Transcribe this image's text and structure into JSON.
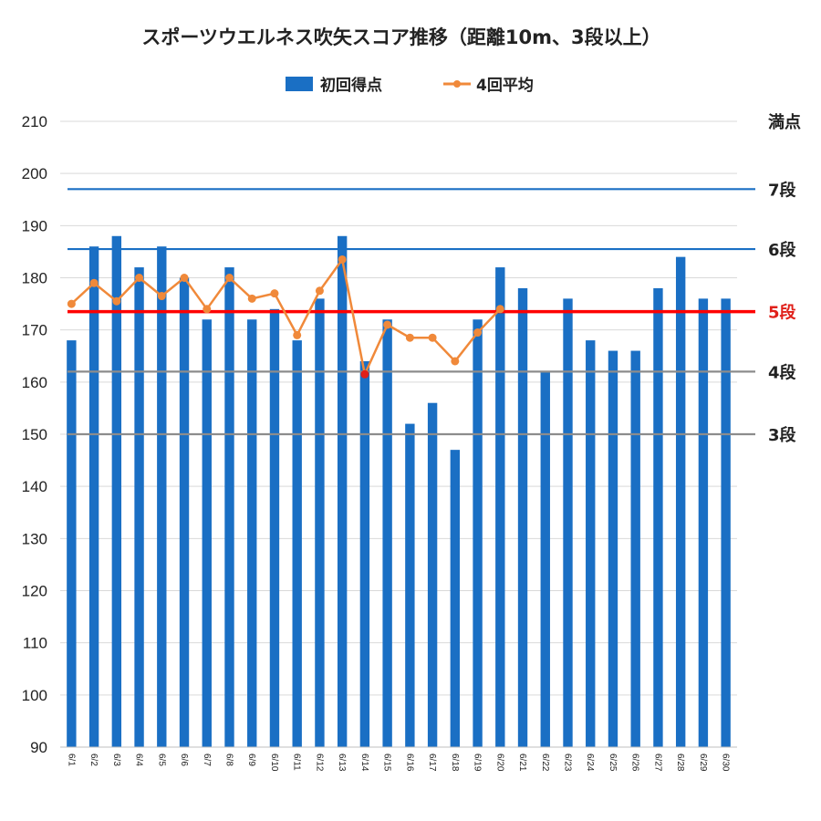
{
  "chart_data": {
    "type": "bar",
    "title": "スポーツウエルネス吹矢スコア推移（距離10m、3段以上）",
    "categories": [
      "6/1",
      "6/2",
      "6/3",
      "6/4",
      "6/5",
      "6/6",
      "6/7",
      "6/8",
      "6/9",
      "6/10",
      "6/11",
      "6/12",
      "6/13",
      "6/14",
      "6/15",
      "6/16",
      "6/17",
      "6/18",
      "6/19",
      "6/20",
      "6/21",
      "6/22",
      "6/23",
      "6/24",
      "6/25",
      "6/26",
      "6/27",
      "6/28",
      "6/29",
      "6/30"
    ],
    "series": [
      {
        "name": "初回得点",
        "kind": "bar",
        "color": "#1a6fc4",
        "values": [
          168,
          186,
          188,
          182,
          186,
          180,
          172,
          182,
          172,
          174,
          168,
          176,
          188,
          164,
          172,
          152,
          156,
          147,
          172,
          182,
          178,
          162,
          176,
          168,
          166,
          166,
          178,
          184,
          176,
          176
        ]
      },
      {
        "name": "4回平均",
        "kind": "line",
        "color": "#f0893a",
        "highlight_color": "#e0201a",
        "highlight_index": 13,
        "values": [
          175,
          179,
          175.5,
          180,
          176.5,
          180,
          174,
          180,
          176,
          177,
          169,
          177.5,
          183.5,
          161.5,
          171,
          168.5,
          168.5,
          164,
          169.5,
          174,
          null,
          null,
          null,
          null,
          null,
          null,
          null,
          null,
          null,
          null
        ]
      }
    ],
    "ylim": [
      90,
      210
    ],
    "yticks": [
      90,
      100,
      110,
      120,
      130,
      140,
      150,
      160,
      170,
      180,
      190,
      200,
      210
    ],
    "xlabel": "",
    "ylabel": "",
    "grid": true,
    "legend_position": "top",
    "reference_lines": [
      {
        "label": "満点",
        "value": 210,
        "color": "#d0d0d0",
        "label_color": "#222222"
      },
      {
        "label": "7段",
        "value": 197,
        "color": "#1a6fc4",
        "label_color": "#222222"
      },
      {
        "label": "6段",
        "value": 185.5,
        "color": "#1a6fc4",
        "label_color": "#222222"
      },
      {
        "label": "5段",
        "value": 173.5,
        "color": "#ff0000",
        "label_color": "#e0201a"
      },
      {
        "label": "4段",
        "value": 162,
        "color": "#8c8c8c",
        "label_color": "#222222"
      },
      {
        "label": "3段",
        "value": 150,
        "color": "#8c8c8c",
        "label_color": "#222222"
      }
    ]
  }
}
